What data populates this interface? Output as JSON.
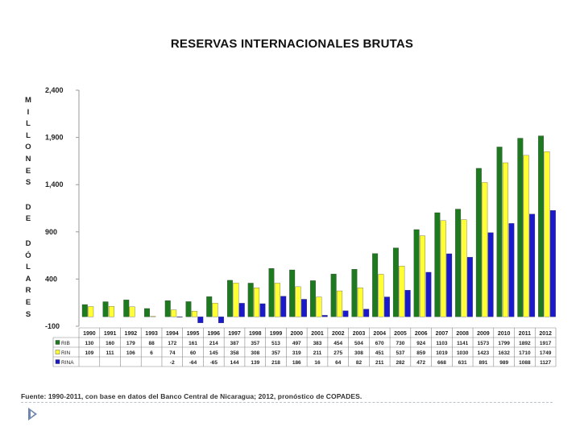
{
  "chart_data": {
    "type": "bar",
    "title": "RESERVAS INTERNACIONALES BRUTAS",
    "ylabel": "MILLONES DE DÓLARES",
    "ylabel_lines": [
      [
        "M",
        "I",
        "L",
        "L",
        "O",
        "N",
        "E",
        "S"
      ],
      [
        "D",
        "E"
      ],
      [
        "D",
        "Ó",
        "L",
        "A",
        "R",
        "E",
        "S"
      ]
    ],
    "yticks": [
      "2,400",
      "1,900",
      "1,400",
      "900",
      "400",
      "-100"
    ],
    "ylim": [
      -100,
      2400
    ],
    "categories": [
      "1990",
      "1991",
      "1992",
      "1993",
      "1994",
      "1995",
      "1996",
      "1997",
      "1998",
      "1999",
      "2000",
      "2001",
      "2002",
      "2003",
      "2004",
      "2005",
      "2006",
      "2007",
      "2008",
      "2009",
      "2010",
      "2011",
      "2012"
    ],
    "series": [
      {
        "name": "RIB",
        "color": "#1e7a1e",
        "values": [
          130,
          160,
          179,
          88,
          172,
          161,
          214,
          387,
          357,
          513,
          497,
          383,
          454,
          504,
          670,
          730,
          924,
          1103,
          1141,
          1573,
          1799,
          1892,
          1917
        ],
        "labels": [
          "130",
          "160",
          "179",
          "88",
          "172",
          "161",
          "214",
          "387",
          "357",
          "513",
          "497",
          "383",
          "454",
          "504",
          "670",
          "730",
          "924",
          "1103",
          "1141",
          "1573",
          "1799",
          "1892",
          "1917"
        ]
      },
      {
        "name": "RIN",
        "color": "#ffff33",
        "values": [
          109,
          111,
          106,
          6,
          74,
          60,
          145,
          358,
          308,
          357,
          319,
          211,
          275,
          308,
          451,
          537,
          859,
          1019,
          1030,
          1423,
          1632,
          1710,
          1749
        ],
        "labels": [
          "109",
          "111",
          "106",
          "6",
          "74",
          "60",
          "145",
          "358",
          "308",
          "357",
          "319",
          "211",
          "275",
          "308",
          "451",
          "537",
          "859",
          "1019",
          "1030",
          "1423",
          "1632",
          "1710",
          "1749"
        ]
      },
      {
        "name": "RINA",
        "color": "#1a1acc",
        "values": [
          null,
          null,
          null,
          null,
          -2,
          -64,
          -65,
          144,
          139,
          218,
          186,
          16,
          64,
          82,
          211,
          282,
          472,
          668,
          631,
          891,
          989,
          1088,
          1127
        ],
        "labels": [
          "",
          "",
          "",
          "",
          "-2",
          "-64",
          "-65",
          "144",
          "139",
          "218",
          "186",
          "16",
          "64",
          "82",
          "211",
          "282",
          "472",
          "668",
          "631",
          "891",
          "989",
          "1088",
          "1127"
        ]
      }
    ],
    "legend": "table-below"
  },
  "source": "Fuente: 1990-2011, con base en datos del Banco Central de Nicaragua; 2012, pronóstico de COPADES."
}
